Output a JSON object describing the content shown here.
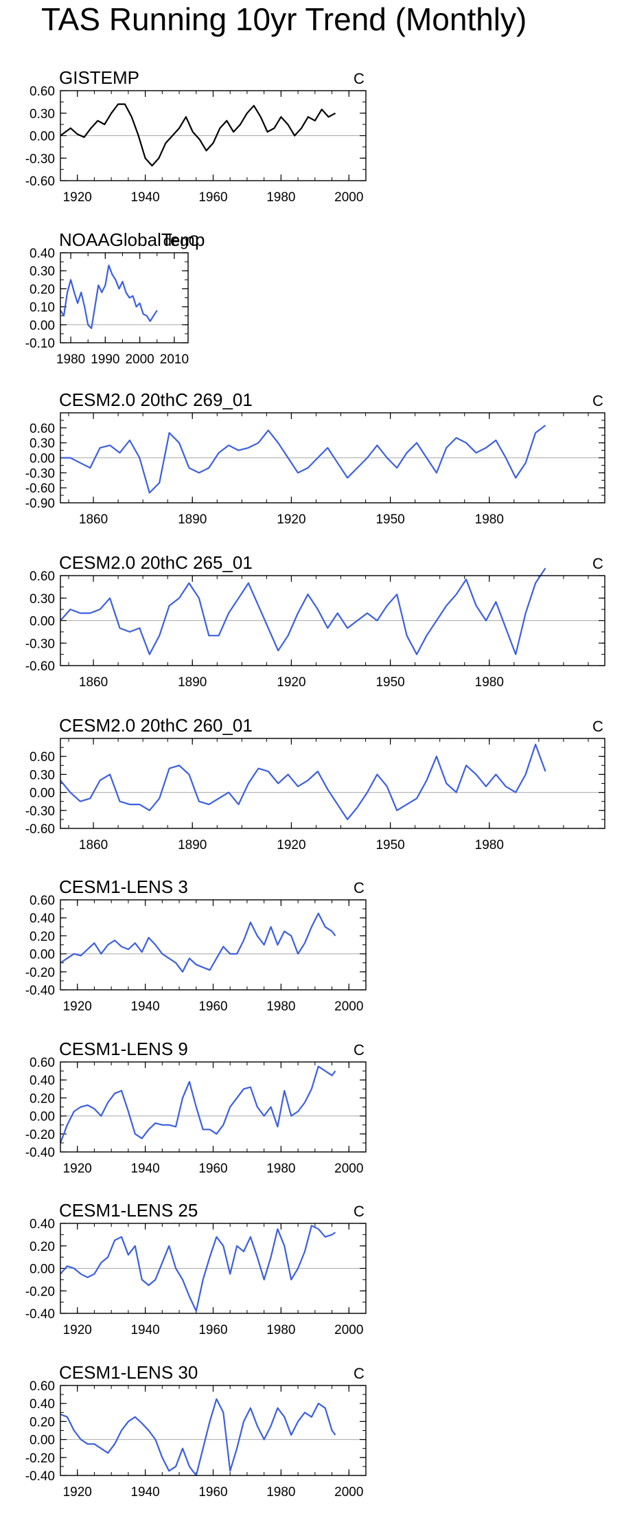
{
  "page": {
    "title": "TAS Running 10yr Trend (Monthly)"
  },
  "colors": {
    "obs_line": "#000000",
    "model_line": "#3b5fe0",
    "zero_line": "#aaaaaa",
    "axis": "#000000"
  },
  "chart_data": [
    {
      "type": "line",
      "title": "GISTEMP",
      "units": "C",
      "xlim": [
        1915,
        2005
      ],
      "ylim": [
        -0.6,
        0.6
      ],
      "xticks": [
        1920,
        1940,
        1960,
        1980,
        2000
      ],
      "ytick_labels": [
        "-0.60",
        "-0.30",
        "0.00",
        "0.30",
        "0.60"
      ],
      "series": [
        {
          "name": "GISTEMP",
          "color": "#000000",
          "x": [
            1915,
            1918,
            1920,
            1922,
            1924,
            1926,
            1928,
            1930,
            1932,
            1934,
            1936,
            1938,
            1940,
            1942,
            1944,
            1946,
            1948,
            1950,
            1952,
            1954,
            1956,
            1958,
            1960,
            1962,
            1964,
            1966,
            1968,
            1970,
            1972,
            1974,
            1976,
            1978,
            1980,
            1982,
            1984,
            1986,
            1988,
            1990,
            1992,
            1994,
            1996
          ],
          "y": [
            0.0,
            0.1,
            0.02,
            -0.02,
            0.1,
            0.2,
            0.15,
            0.3,
            0.42,
            0.42,
            0.25,
            0.0,
            -0.3,
            -0.4,
            -0.3,
            -0.1,
            0.0,
            0.1,
            0.25,
            0.05,
            -0.05,
            -0.2,
            -0.1,
            0.1,
            0.2,
            0.05,
            0.15,
            0.3,
            0.4,
            0.25,
            0.05,
            0.1,
            0.25,
            0.15,
            0.0,
            0.1,
            0.25,
            0.2,
            0.35,
            0.25,
            0.3
          ]
        }
      ]
    },
    {
      "type": "line",
      "title": "NOAAGlobalTemp",
      "units": "degC",
      "xlim": [
        1977,
        2014
      ],
      "ylim": [
        -0.1,
        0.4
      ],
      "xticks": [
        1980,
        1990,
        2000,
        2010
      ],
      "ytick_labels": [
        "-0.10",
        "0.00",
        "0.10",
        "0.20",
        "0.30",
        "0.40"
      ],
      "series": [
        {
          "name": "NOAAGlobalTemp",
          "color": "#3b5fe0",
          "x": [
            1977,
            1978,
            1979,
            1980,
            1981,
            1982,
            1983,
            1984,
            1985,
            1986,
            1987,
            1988,
            1989,
            1990,
            1991,
            1992,
            1993,
            1994,
            1995,
            1996,
            1997,
            1998,
            1999,
            2000,
            2001,
            2002,
            2003,
            2004,
            2005
          ],
          "y": [
            0.08,
            0.05,
            0.18,
            0.25,
            0.18,
            0.12,
            0.18,
            0.1,
            0.0,
            -0.02,
            0.1,
            0.22,
            0.18,
            0.22,
            0.33,
            0.28,
            0.25,
            0.2,
            0.24,
            0.18,
            0.15,
            0.16,
            0.1,
            0.12,
            0.06,
            0.05,
            0.02,
            0.05,
            0.08
          ]
        }
      ]
    },
    {
      "type": "line",
      "title": "CESM2.0 20thC 269_01",
      "units": "C",
      "xlim": [
        1850,
        2015
      ],
      "ylim": [
        -0.9,
        0.9
      ],
      "xticks": [
        1860,
        1890,
        1920,
        1950,
        1980
      ],
      "ytick_labels": [
        "-0.90",
        "-0.60",
        "-0.30",
        "0.00",
        "0.30",
        "0.60"
      ],
      "series": [
        {
          "name": "269_01",
          "color": "#3b5fe0",
          "x": [
            1850,
            1853,
            1856,
            1859,
            1862,
            1865,
            1868,
            1871,
            1874,
            1877,
            1880,
            1883,
            1886,
            1889,
            1892,
            1895,
            1898,
            1901,
            1904,
            1907,
            1910,
            1913,
            1916,
            1919,
            1922,
            1925,
            1928,
            1931,
            1934,
            1937,
            1940,
            1943,
            1946,
            1949,
            1952,
            1955,
            1958,
            1961,
            1964,
            1967,
            1970,
            1973,
            1976,
            1979,
            1982,
            1985,
            1988,
            1991,
            1994,
            1997
          ],
          "y": [
            0.0,
            0.0,
            -0.1,
            -0.2,
            0.2,
            0.25,
            0.1,
            0.35,
            0.0,
            -0.7,
            -0.5,
            0.5,
            0.3,
            -0.2,
            -0.3,
            -0.2,
            0.1,
            0.25,
            0.15,
            0.2,
            0.3,
            0.55,
            0.3,
            0.0,
            -0.3,
            -0.2,
            0.0,
            0.2,
            -0.1,
            -0.4,
            -0.2,
            0.0,
            0.25,
            0.0,
            -0.2,
            0.1,
            0.3,
            0.0,
            -0.3,
            0.2,
            0.4,
            0.3,
            0.1,
            0.2,
            0.35,
            0.0,
            -0.4,
            -0.1,
            0.5,
            0.65
          ]
        }
      ]
    },
    {
      "type": "line",
      "title": "CESM2.0 20thC 265_01",
      "units": "C",
      "xlim": [
        1850,
        2015
      ],
      "ylim": [
        -0.6,
        0.6
      ],
      "xticks": [
        1860,
        1890,
        1920,
        1950,
        1980
      ],
      "ytick_labels": [
        "-0.60",
        "-0.30",
        "0.00",
        "0.30",
        "0.60"
      ],
      "series": [
        {
          "name": "265_01",
          "color": "#3b5fe0",
          "x": [
            1850,
            1853,
            1856,
            1859,
            1862,
            1865,
            1868,
            1871,
            1874,
            1877,
            1880,
            1883,
            1886,
            1889,
            1892,
            1895,
            1898,
            1901,
            1904,
            1907,
            1910,
            1913,
            1916,
            1919,
            1922,
            1925,
            1928,
            1931,
            1934,
            1937,
            1940,
            1943,
            1946,
            1949,
            1952,
            1955,
            1958,
            1961,
            1964,
            1967,
            1970,
            1973,
            1976,
            1979,
            1982,
            1985,
            1988,
            1991,
            1994,
            1997
          ],
          "y": [
            0.0,
            0.15,
            0.1,
            0.1,
            0.15,
            0.3,
            -0.1,
            -0.15,
            -0.1,
            -0.45,
            -0.2,
            0.2,
            0.3,
            0.5,
            0.3,
            -0.2,
            -0.2,
            0.1,
            0.3,
            0.5,
            0.2,
            -0.1,
            -0.4,
            -0.2,
            0.1,
            0.35,
            0.15,
            -0.1,
            0.1,
            -0.1,
            0.0,
            0.1,
            0.0,
            0.2,
            0.35,
            -0.2,
            -0.45,
            -0.2,
            0.0,
            0.2,
            0.35,
            0.55,
            0.2,
            0.0,
            0.25,
            -0.1,
            -0.45,
            0.1,
            0.5,
            0.7
          ]
        }
      ]
    },
    {
      "type": "line",
      "title": "CESM2.0 20thC 260_01",
      "units": "C",
      "xlim": [
        1850,
        2015
      ],
      "ylim": [
        -0.6,
        0.9
      ],
      "xticks": [
        1860,
        1890,
        1920,
        1950,
        1980
      ],
      "ytick_labels": [
        "-0.60",
        "-0.30",
        "0.00",
        "0.30",
        "0.60"
      ],
      "series": [
        {
          "name": "260_01",
          "color": "#3b5fe0",
          "x": [
            1850,
            1853,
            1856,
            1859,
            1862,
            1865,
            1868,
            1871,
            1874,
            1877,
            1880,
            1883,
            1886,
            1889,
            1892,
            1895,
            1898,
            1901,
            1904,
            1907,
            1910,
            1913,
            1916,
            1919,
            1922,
            1925,
            1928,
            1931,
            1934,
            1937,
            1940,
            1943,
            1946,
            1949,
            1952,
            1955,
            1958,
            1961,
            1964,
            1967,
            1970,
            1973,
            1976,
            1979,
            1982,
            1985,
            1988,
            1991,
            1994,
            1997
          ],
          "y": [
            0.2,
            0.0,
            -0.15,
            -0.1,
            0.2,
            0.3,
            -0.15,
            -0.2,
            -0.2,
            -0.3,
            -0.1,
            0.4,
            0.45,
            0.3,
            -0.15,
            -0.2,
            -0.1,
            0.0,
            -0.2,
            0.15,
            0.4,
            0.35,
            0.15,
            0.3,
            0.1,
            0.2,
            0.35,
            0.05,
            -0.2,
            -0.45,
            -0.25,
            0.0,
            0.3,
            0.1,
            -0.3,
            -0.2,
            -0.1,
            0.2,
            0.6,
            0.15,
            0.0,
            0.45,
            0.3,
            0.1,
            0.3,
            0.1,
            0.0,
            0.3,
            0.8,
            0.35
          ]
        }
      ]
    },
    {
      "type": "line",
      "title": "CESM1-LENS 3",
      "units": "C",
      "xlim": [
        1915,
        2005
      ],
      "ylim": [
        -0.4,
        0.6
      ],
      "xticks": [
        1920,
        1940,
        1960,
        1980,
        2000
      ],
      "ytick_labels": [
        "-0.40",
        "-0.20",
        "0.00",
        "0.20",
        "0.40",
        "0.60"
      ],
      "series": [
        {
          "name": "LENS 3",
          "color": "#3b5fe0",
          "x": [
            1915,
            1917,
            1919,
            1921,
            1923,
            1925,
            1927,
            1929,
            1931,
            1933,
            1935,
            1937,
            1939,
            1941,
            1943,
            1945,
            1947,
            1949,
            1951,
            1953,
            1955,
            1957,
            1959,
            1961,
            1963,
            1965,
            1967,
            1969,
            1971,
            1973,
            1975,
            1977,
            1979,
            1981,
            1983,
            1985,
            1987,
            1989,
            1991,
            1993,
            1995,
            1996
          ],
          "y": [
            -0.1,
            -0.05,
            0.0,
            -0.02,
            0.05,
            0.12,
            0.0,
            0.1,
            0.15,
            0.08,
            0.05,
            0.12,
            0.02,
            0.18,
            0.1,
            0.0,
            -0.05,
            -0.1,
            -0.2,
            -0.05,
            -0.12,
            -0.15,
            -0.18,
            -0.05,
            0.08,
            0.0,
            0.0,
            0.15,
            0.35,
            0.2,
            0.1,
            0.3,
            0.1,
            0.25,
            0.2,
            0.0,
            0.12,
            0.3,
            0.45,
            0.3,
            0.25,
            0.2
          ]
        }
      ]
    },
    {
      "type": "line",
      "title": "CESM1-LENS 9",
      "units": "C",
      "xlim": [
        1915,
        2005
      ],
      "ylim": [
        -0.4,
        0.6
      ],
      "xticks": [
        1920,
        1940,
        1960,
        1980,
        2000
      ],
      "ytick_labels": [
        "-0.40",
        "-0.20",
        "0.00",
        "0.20",
        "0.40",
        "0.60"
      ],
      "series": [
        {
          "name": "LENS 9",
          "color": "#3b5fe0",
          "x": [
            1915,
            1917,
            1919,
            1921,
            1923,
            1925,
            1927,
            1929,
            1931,
            1933,
            1935,
            1937,
            1939,
            1941,
            1943,
            1945,
            1947,
            1949,
            1951,
            1953,
            1955,
            1957,
            1959,
            1961,
            1963,
            1965,
            1967,
            1969,
            1971,
            1973,
            1975,
            1977,
            1979,
            1981,
            1983,
            1985,
            1987,
            1989,
            1991,
            1993,
            1995,
            1996
          ],
          "y": [
            -0.3,
            -0.1,
            0.05,
            0.1,
            0.12,
            0.08,
            0.0,
            0.15,
            0.25,
            0.28,
            0.05,
            -0.2,
            -0.25,
            -0.15,
            -0.08,
            -0.1,
            -0.1,
            -0.12,
            0.2,
            0.38,
            0.1,
            -0.15,
            -0.15,
            -0.2,
            -0.1,
            0.1,
            0.2,
            0.3,
            0.32,
            0.1,
            0.0,
            0.1,
            -0.12,
            0.28,
            0.0,
            0.05,
            0.15,
            0.3,
            0.55,
            0.5,
            0.45,
            0.5
          ]
        }
      ]
    },
    {
      "type": "line",
      "title": "CESM1-LENS 25",
      "units": "C",
      "xlim": [
        1915,
        2005
      ],
      "ylim": [
        -0.4,
        0.4
      ],
      "xticks": [
        1920,
        1940,
        1960,
        1980,
        2000
      ],
      "ytick_labels": [
        "-0.40",
        "-0.20",
        "0.00",
        "0.20",
        "0.40"
      ],
      "series": [
        {
          "name": "LENS 25",
          "color": "#3b5fe0",
          "x": [
            1915,
            1917,
            1919,
            1921,
            1923,
            1925,
            1927,
            1929,
            1931,
            1933,
            1935,
            1937,
            1939,
            1941,
            1943,
            1945,
            1947,
            1949,
            1951,
            1953,
            1955,
            1957,
            1959,
            1961,
            1963,
            1965,
            1967,
            1969,
            1971,
            1973,
            1975,
            1977,
            1979,
            1981,
            1983,
            1985,
            1987,
            1989,
            1991,
            1993,
            1995,
            1996
          ],
          "y": [
            -0.05,
            0.02,
            0.0,
            -0.05,
            -0.08,
            -0.05,
            0.05,
            0.1,
            0.25,
            0.28,
            0.12,
            0.2,
            -0.1,
            -0.15,
            -0.1,
            0.05,
            0.2,
            0.0,
            -0.1,
            -0.25,
            -0.38,
            -0.1,
            0.1,
            0.28,
            0.2,
            -0.05,
            0.2,
            0.15,
            0.28,
            0.1,
            -0.1,
            0.1,
            0.35,
            0.2,
            -0.1,
            0.0,
            0.15,
            0.38,
            0.35,
            0.28,
            0.3,
            0.32
          ]
        }
      ]
    },
    {
      "type": "line",
      "title": "CESM1-LENS 30",
      "units": "C",
      "xlim": [
        1915,
        2005
      ],
      "ylim": [
        -0.4,
        0.6
      ],
      "xticks": [
        1920,
        1940,
        1960,
        1980,
        2000
      ],
      "ytick_labels": [
        "-0.40",
        "-0.20",
        "0.00",
        "0.20",
        "0.40",
        "0.60"
      ],
      "series": [
        {
          "name": "LENS 30",
          "color": "#3b5fe0",
          "x": [
            1915,
            1917,
            1919,
            1921,
            1923,
            1925,
            1927,
            1929,
            1931,
            1933,
            1935,
            1937,
            1939,
            1941,
            1943,
            1945,
            1947,
            1949,
            1951,
            1953,
            1955,
            1957,
            1959,
            1961,
            1963,
            1965,
            1967,
            1969,
            1971,
            1973,
            1975,
            1977,
            1979,
            1981,
            1983,
            1985,
            1987,
            1989,
            1991,
            1993,
            1995,
            1996
          ],
          "y": [
            0.28,
            0.25,
            0.1,
            0.0,
            -0.05,
            -0.05,
            -0.1,
            -0.15,
            -0.05,
            0.1,
            0.2,
            0.25,
            0.18,
            0.1,
            0.0,
            -0.2,
            -0.35,
            -0.3,
            -0.1,
            -0.3,
            -0.4,
            -0.1,
            0.2,
            0.45,
            0.3,
            -0.35,
            -0.1,
            0.2,
            0.35,
            0.15,
            0.0,
            0.15,
            0.35,
            0.25,
            0.05,
            0.2,
            0.3,
            0.25,
            0.4,
            0.35,
            0.1,
            0.05
          ]
        }
      ]
    }
  ]
}
